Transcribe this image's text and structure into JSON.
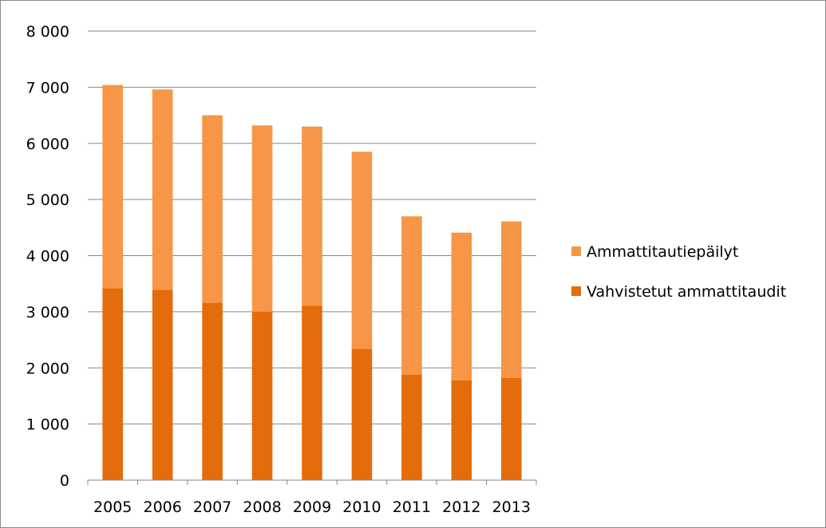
{
  "chart_data": {
    "type": "bar",
    "stacked": true,
    "categories": [
      "2005",
      "2006",
      "2007",
      "2008",
      "2009",
      "2010",
      "2011",
      "2012",
      "2013"
    ],
    "series": [
      {
        "name": "Vahvistetut ammattitaudit",
        "color": "#e46c0a",
        "values": [
          3420,
          3390,
          3160,
          3000,
          3110,
          2340,
          1880,
          1780,
          1820
        ]
      },
      {
        "name": "Ammattitautiepäilyt",
        "color": "#f79646",
        "values": [
          3620,
          3570,
          3340,
          3320,
          3190,
          3510,
          2820,
          2630,
          2790
        ]
      }
    ],
    "y_ticks": [
      "0",
      "1 000",
      "2 000",
      "3 000",
      "4 000",
      "5 000",
      "6 000",
      "7 000",
      "8 000"
    ],
    "ylim": [
      0,
      8000
    ],
    "grid": true,
    "legend": {
      "position": "right",
      "entries": [
        {
          "label": "Ammattitautiepäilyt",
          "color": "#f79646"
        },
        {
          "label": "Vahvistetut ammattitaudit",
          "color": "#e46c0a"
        }
      ]
    },
    "title": "",
    "xlabel": "",
    "ylabel": ""
  }
}
